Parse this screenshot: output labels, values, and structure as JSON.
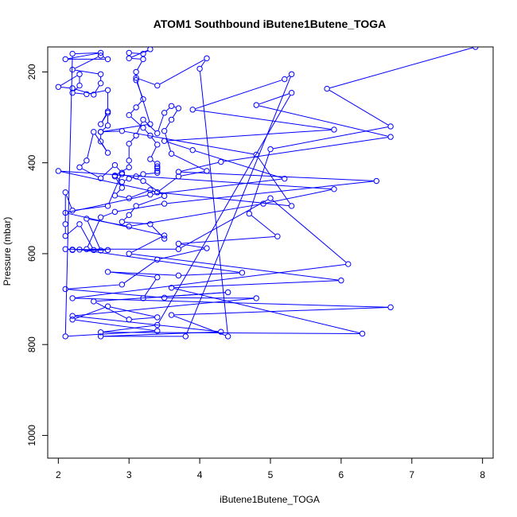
{
  "chart_data": {
    "type": "line",
    "title": "ATOM1 Southbound iButene1Butene_TOGA",
    "xlabel": "iButene1Butene_TOGA",
    "ylabel": "Pressure (mbar)",
    "xlim": [
      1.85,
      8.15
    ],
    "ylim": [
      1050,
      145
    ],
    "y_reversed": true,
    "x_ticks": [
      2,
      3,
      4,
      5,
      6,
      7,
      8
    ],
    "y_ticks": [
      200,
      400,
      600,
      800,
      1000
    ],
    "grid": false,
    "legend": "none",
    "colors": {
      "series": "#0000ff",
      "axes": "#000000"
    },
    "series": [
      {
        "marker": "open-circle",
        "points": [
          [
            7.9,
            145
          ],
          [
            5.8,
            237
          ],
          [
            6.7,
            320
          ],
          [
            5.0,
            370
          ],
          [
            4.7,
            512
          ],
          [
            5.1,
            562
          ],
          [
            3.7,
            578
          ],
          [
            4.1,
            588
          ],
          [
            3.4,
            613
          ],
          [
            2.9,
            668
          ],
          [
            2.1,
            678
          ],
          [
            3.5,
            697
          ],
          [
            4.8,
            698
          ],
          [
            2.2,
            737
          ],
          [
            4.3,
            772
          ],
          [
            2.6,
            782
          ],
          [
            3.8,
            782
          ],
          [
            5.3,
            205
          ],
          [
            5.2,
            216
          ],
          [
            3.9,
            283
          ],
          [
            5.9,
            327
          ],
          [
            3.5,
            352
          ],
          [
            3.9,
            372
          ],
          [
            5.2,
            435
          ],
          [
            3.3,
            470
          ],
          [
            2.1,
            510
          ],
          [
            3.5,
            560
          ],
          [
            3.0,
            600
          ],
          [
            6.0,
            659
          ],
          [
            3.6,
            675
          ],
          [
            6.3,
            776
          ],
          [
            2.6,
            773
          ],
          [
            3.4,
            757
          ],
          [
            5.3,
            246
          ],
          [
            4.8,
            273
          ],
          [
            6.7,
            343
          ],
          [
            4.3,
            398
          ],
          [
            3.7,
            420
          ],
          [
            6.5,
            440
          ],
          [
            3.5,
            490
          ],
          [
            2.8,
            508
          ],
          [
            2.6,
            520
          ],
          [
            2.4,
            590
          ],
          [
            3.7,
            590
          ],
          [
            5.0,
            478
          ],
          [
            6.1,
            623
          ],
          [
            2.2,
            698
          ],
          [
            6.7,
            718
          ],
          [
            3.6,
            735
          ],
          [
            4.4,
            782
          ],
          [
            4.0,
            193
          ],
          [
            4.1,
            170
          ],
          [
            3.4,
            230
          ],
          [
            3.1,
            213
          ],
          [
            3.3,
            315
          ],
          [
            2.6,
            332
          ],
          [
            2.9,
            330
          ],
          [
            4.8,
            382
          ],
          [
            5.3,
            495
          ],
          [
            3.4,
            465
          ],
          [
            2.0,
            418
          ],
          [
            5.9,
            458
          ],
          [
            4.9,
            490
          ],
          [
            3.0,
            540
          ],
          [
            2.4,
            523
          ],
          [
            2.6,
            593
          ],
          [
            2.2,
            591
          ],
          [
            2.3,
            591
          ],
          [
            4.6,
            642
          ],
          [
            3.7,
            648
          ],
          [
            2.7,
            640
          ],
          [
            3.4,
            652
          ],
          [
            3.2,
            698
          ],
          [
            4.4,
            685
          ],
          [
            2.5,
            705
          ],
          [
            3.0,
            745
          ],
          [
            3.4,
            740
          ],
          [
            2.7,
            716
          ],
          [
            2.2,
            745
          ],
          [
            3.4,
            770
          ],
          [
            2.1,
            782
          ],
          [
            2.2,
            160
          ],
          [
            2.6,
            158
          ],
          [
            2.1,
            172
          ],
          [
            2.7,
            172
          ],
          [
            2.6,
            164
          ],
          [
            2.2,
            195
          ],
          [
            2.6,
            205
          ],
          [
            2.6,
            225
          ],
          [
            2.5,
            250
          ],
          [
            2.2,
            236
          ],
          [
            2.0,
            233
          ],
          [
            2.3,
            205
          ],
          [
            2.3,
            230
          ],
          [
            2.2,
            246
          ],
          [
            2.4,
            249
          ],
          [
            2.7,
            240
          ],
          [
            2.7,
            287
          ],
          [
            2.6,
            315
          ],
          [
            2.7,
            290
          ],
          [
            2.7,
            318
          ],
          [
            2.6,
            332
          ],
          [
            2.6,
            353
          ],
          [
            2.7,
            378
          ],
          [
            2.5,
            332
          ],
          [
            2.4,
            395
          ],
          [
            2.3,
            410
          ],
          [
            2.6,
            434
          ],
          [
            2.8,
            405
          ],
          [
            2.9,
            422
          ],
          [
            2.7,
            495
          ],
          [
            2.2,
            505
          ],
          [
            2.1,
            465
          ],
          [
            2.1,
            535
          ],
          [
            2.1,
            561
          ],
          [
            2.3,
            535
          ],
          [
            2.5,
            592
          ],
          [
            2.7,
            592
          ],
          [
            2.1,
            590
          ],
          [
            2.2,
            592
          ]
        ]
      },
      {
        "marker": "open-circle",
        "points": [
          [
            3.0,
            158
          ],
          [
            3.2,
            160
          ],
          [
            3.3,
            150
          ],
          [
            3.0,
            170
          ],
          [
            3.2,
            172
          ],
          [
            3.1,
            200
          ],
          [
            3.1,
            218
          ],
          [
            3.2,
            260
          ],
          [
            3.1,
            278
          ],
          [
            3.0,
            295
          ],
          [
            3.2,
            323
          ],
          [
            3.3,
            340
          ],
          [
            3.4,
            360
          ],
          [
            3.3,
            392
          ],
          [
            3.4,
            402
          ],
          [
            3.4,
            408
          ],
          [
            3.4,
            412
          ],
          [
            3.4,
            418
          ],
          [
            3.4,
            422
          ],
          [
            3.2,
            425
          ],
          [
            3.1,
            430
          ],
          [
            3.0,
            435
          ],
          [
            2.9,
            442
          ],
          [
            2.8,
            428
          ],
          [
            3.0,
            410
          ],
          [
            3.0,
            395
          ],
          [
            3.0,
            358
          ],
          [
            3.1,
            340
          ],
          [
            3.2,
            305
          ],
          [
            3.4,
            335
          ],
          [
            3.5,
            290
          ],
          [
            3.6,
            275
          ],
          [
            3.7,
            280
          ],
          [
            3.6,
            305
          ],
          [
            3.5,
            330
          ],
          [
            3.6,
            380
          ],
          [
            4.1,
            418
          ],
          [
            3.7,
            430
          ],
          [
            3.4,
            465
          ],
          [
            3.3,
            460
          ],
          [
            3.0,
            478
          ],
          [
            2.8,
            472
          ],
          [
            2.9,
            455
          ],
          [
            2.8,
            430
          ],
          [
            2.9,
            425
          ],
          [
            3.2,
            440
          ],
          [
            3.5,
            473
          ],
          [
            3.1,
            495
          ],
          [
            3.0,
            515
          ],
          [
            2.9,
            530
          ],
          [
            3.3,
            535
          ],
          [
            3.5,
            567
          ]
        ]
      }
    ]
  }
}
